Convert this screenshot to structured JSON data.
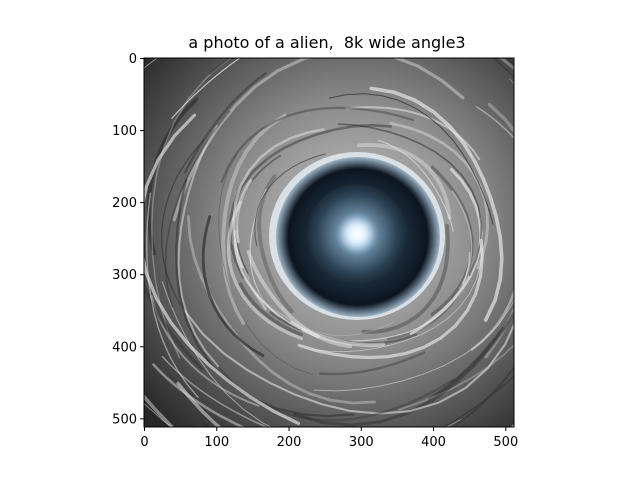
{
  "title": "a photo of a alien,  8k wide angle3",
  "axes": {
    "x_ticks": [
      "0",
      "100",
      "200",
      "300",
      "400",
      "500"
    ],
    "y_ticks": [
      "0",
      "100",
      "200",
      "300",
      "400",
      "500"
    ],
    "x_range": [
      0,
      512
    ],
    "y_range": [
      0,
      512
    ],
    "y_inverted": true
  },
  "image": {
    "subject": "tunnel-vortex",
    "palette": {
      "background_dark": "#2a2a2a",
      "swirl_light": "#d8d8d8",
      "swirl_mid": "#8a8a8a",
      "core_outer": "#0d1a26",
      "core_mid": "#3c5870",
      "core_glow": "#ffffff",
      "rim_light": "#e8f0f8"
    }
  }
}
